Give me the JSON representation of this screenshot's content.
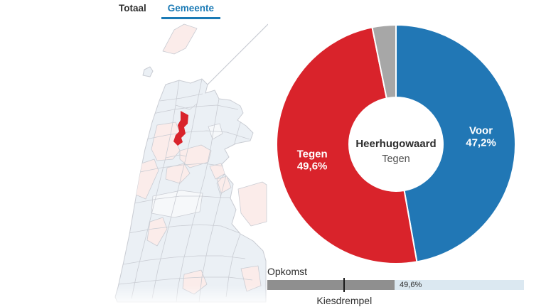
{
  "ui_colors": {
    "accent": "#1a7ab5",
    "text_dark": "#2e2e2e",
    "text_muted": "#4f4f4f"
  },
  "tabs": [
    {
      "label": "Totaal",
      "active": false
    },
    {
      "label": "Gemeente",
      "active": true
    }
  ],
  "map": {
    "highlighted_municipality": "Heerhugowaard",
    "highlight_color": "#d9232b",
    "region_fill_blue": "#ebf0f5",
    "region_fill_pink": "#fbecea",
    "region_fill_light": "#f6f8fa",
    "border_color": "#c9ccd3"
  },
  "chart_data": {
    "type": "pie",
    "donut": true,
    "title": "Heerhugowaard",
    "subtitle": "Tegen",
    "start_angle_deg": 0,
    "direction": "clockwise",
    "slices": [
      {
        "name": "Voor",
        "value": 47.2,
        "display": "47,2%",
        "color": "#2177b5",
        "labeled": true
      },
      {
        "name": "Tegen",
        "value": 49.6,
        "display": "49,6%",
        "color": "#d9232b",
        "labeled": true
      },
      {
        "name": "Overig",
        "value": 3.2,
        "display": "",
        "color": "#a7a7a7",
        "labeled": false
      }
    ]
  },
  "turnout": {
    "label": "Opkomst",
    "value_percent": 49.6,
    "value_display": "49,6%",
    "threshold_percent": 30,
    "threshold_label": "Kiesdrempel",
    "bar_background": "#dbe8f1",
    "bar_fill": "#8f8f8f",
    "marker_color": "#1a1a1a"
  }
}
